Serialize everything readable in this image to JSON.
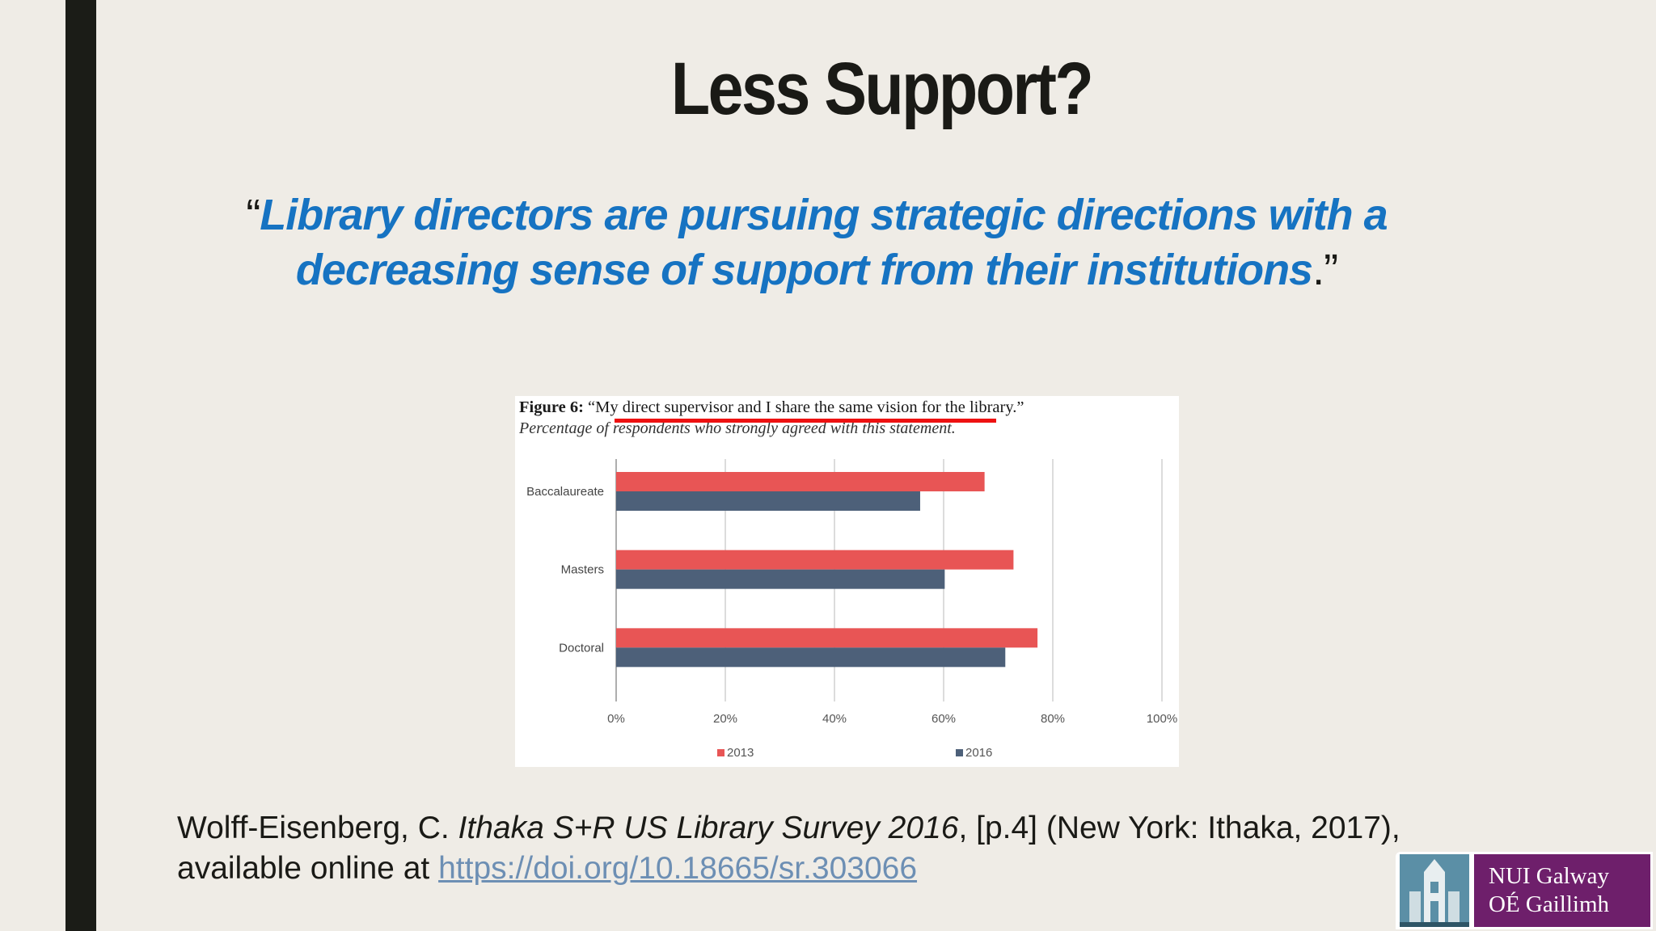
{
  "slide": {
    "title": "Less Support?",
    "quote_open": "“",
    "quote_text": "Library directors are pursuing strategic directions with a decreasing sense of support from their institutions",
    "quote_close": ".”"
  },
  "figure": {
    "label": "Figure 6:",
    "statement": "“My direct supervisor and I share the same vision for the library.”",
    "subtitle": "Percentage of respondents who strongly agreed with this statement."
  },
  "chart_data": {
    "type": "bar",
    "orientation": "horizontal",
    "categories": [
      "Baccalaureate",
      "Masters",
      "Doctoral"
    ],
    "series": [
      {
        "name": "2013",
        "values": [
          67.5,
          72.8,
          77.2
        ],
        "color": "#e85555"
      },
      {
        "name": "2016",
        "values": [
          55.7,
          60.2,
          71.3
        ],
        "color": "#4d6079"
      }
    ],
    "xlim": [
      0,
      100
    ],
    "xticks": [
      "0%",
      "20%",
      "40%",
      "60%",
      "80%",
      "100%"
    ],
    "grid": true,
    "legend": "bottom"
  },
  "citation": {
    "author": "Wolff-Eisenberg, C.",
    "title": "Ithaka S+R US Library Survey 2016",
    "rest": ", [p.4] (New York: Ithaka, 2017),",
    "available": "available online at",
    "link": "https://doi.org/10.18665/sr.303066"
  },
  "logo": {
    "line1": "NUI Galway",
    "line2": "OÉ Gaillimh",
    "colors": {
      "crest": "#5b8fa6",
      "panel": "#6e1f6b"
    }
  }
}
